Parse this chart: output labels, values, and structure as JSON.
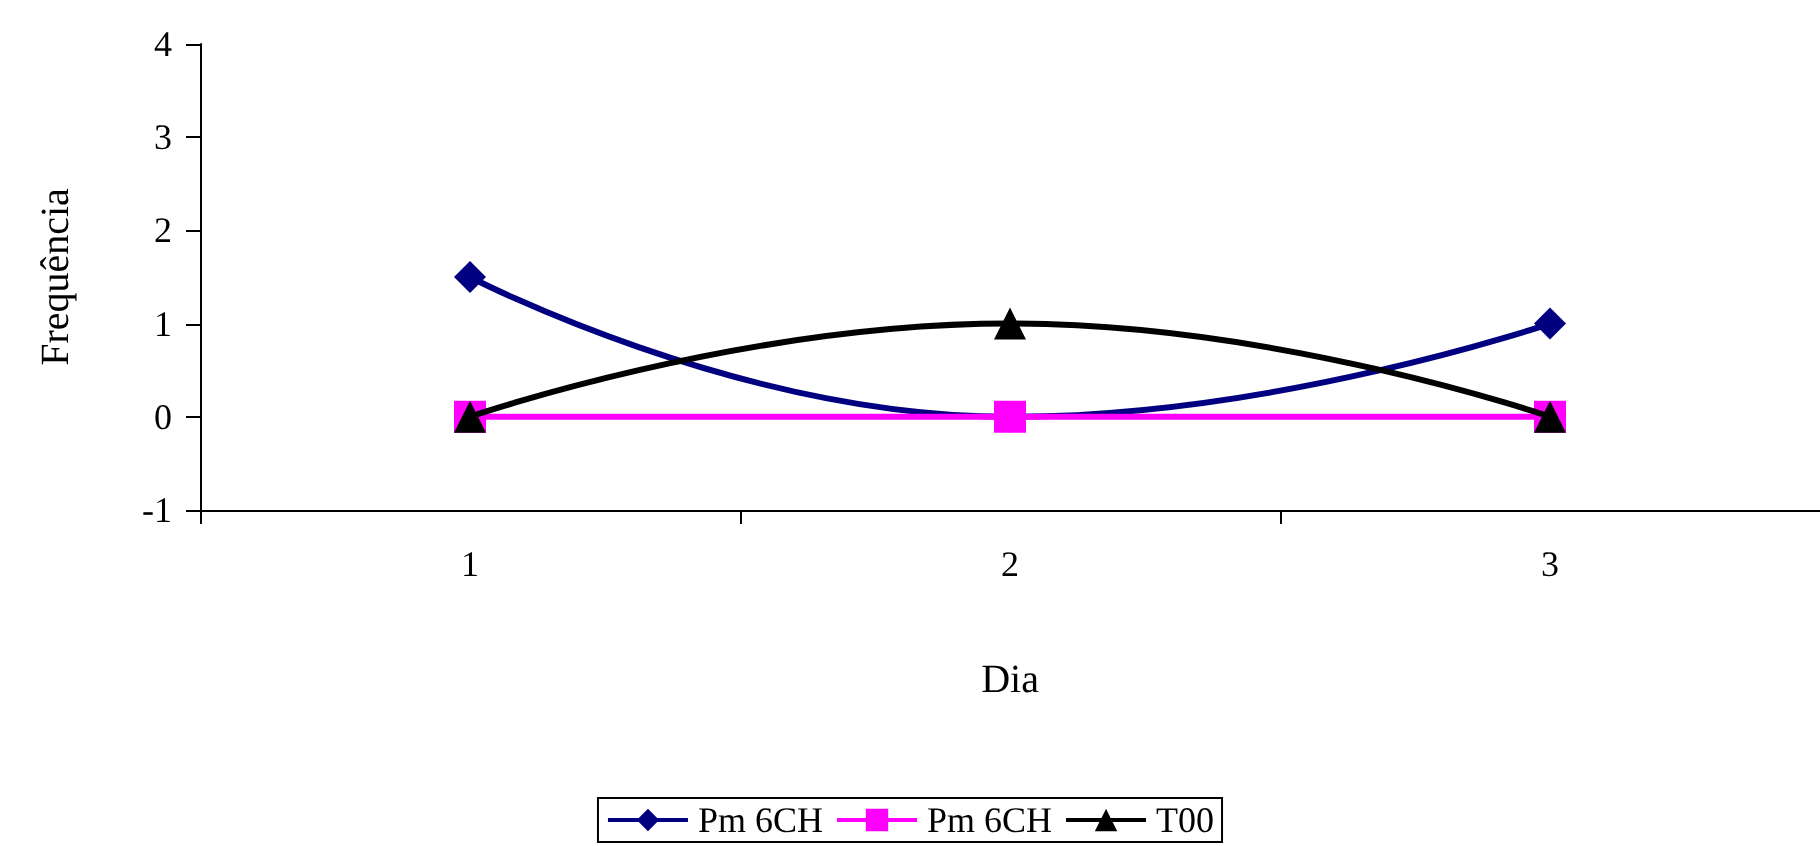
{
  "chart_data": {
    "type": "line",
    "xlabel": "Dia",
    "ylabel": "Frequência",
    "categories": [
      "1",
      "2",
      "3"
    ],
    "series": [
      {
        "name": "Pm 6CH",
        "color": "#000080",
        "marker": "diamond",
        "values": [
          1.5,
          0,
          1
        ]
      },
      {
        "name": "Pm 6CH",
        "color": "#ff00ff",
        "marker": "square",
        "values": [
          0,
          0,
          0
        ]
      },
      {
        "name": "T00",
        "color": "#000000",
        "marker": "triangle",
        "values": [
          0,
          1,
          0
        ]
      }
    ],
    "ylim": [
      -1,
      4
    ],
    "yticks": [
      -1,
      0,
      1,
      2,
      3,
      4
    ],
    "grid": false,
    "legend": "bottom"
  }
}
